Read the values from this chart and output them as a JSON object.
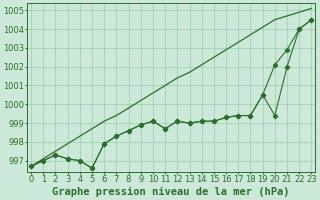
{
  "xlabel": "Graphe pression niveau de la mer (hPa)",
  "bg_color": "#cce8d8",
  "grid_color": "#99ccaa",
  "line_color": "#2d6e2d",
  "x": [
    0,
    1,
    2,
    3,
    4,
    5,
    6,
    7,
    8,
    9,
    10,
    11,
    12,
    13,
    14,
    15,
    16,
    17,
    18,
    19,
    20,
    21,
    22,
    23
  ],
  "series1": [
    996.7,
    997.1,
    997.5,
    997.9,
    998.3,
    998.7,
    999.1,
    999.4,
    999.8,
    1000.2,
    1000.6,
    1001.0,
    1001.4,
    1001.7,
    1002.1,
    1002.5,
    1002.9,
    1003.3,
    1003.7,
    1004.1,
    1004.5,
    1004.7,
    1004.9,
    1005.1
  ],
  "series2": [
    996.7,
    997.0,
    997.3,
    997.1,
    997.0,
    996.6,
    997.9,
    998.3,
    998.6,
    998.9,
    999.1,
    998.7,
    999.1,
    999.0,
    999.1,
    999.1,
    999.3,
    999.4,
    999.4,
    1000.5,
    1002.1,
    1002.9,
    1004.0,
    1004.5
  ],
  "series3": [
    996.7,
    997.0,
    997.3,
    997.1,
    997.0,
    996.6,
    997.9,
    998.3,
    998.6,
    998.9,
    999.1,
    998.7,
    999.1,
    999.0,
    999.1,
    999.1,
    999.3,
    999.4,
    999.4,
    1000.5,
    999.4,
    1002.0,
    1004.0,
    1004.5
  ],
  "ylim": [
    996.4,
    1005.4
  ],
  "yticks": [
    997,
    998,
    999,
    1000,
    1001,
    1002,
    1003,
    1004,
    1005
  ],
  "xlabel_fontsize": 7.5,
  "tick_fontsize": 6.0,
  "figwidth": 3.2,
  "figheight": 2.0,
  "dpi": 100
}
